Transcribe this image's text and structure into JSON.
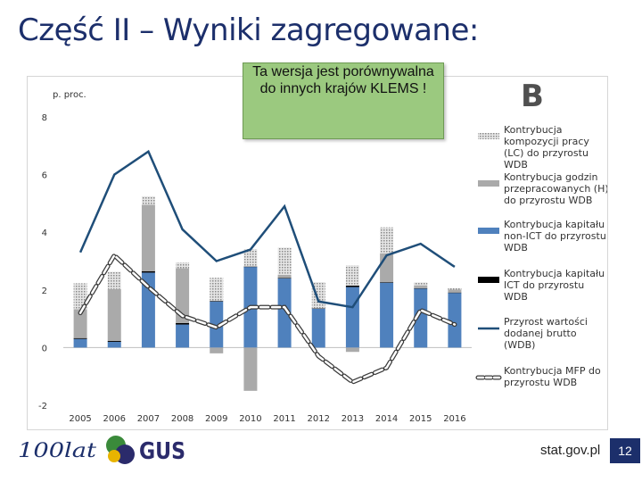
{
  "slide": {
    "title": "Część II – Wyniki zagregowane:",
    "note": "Ta wersja jest porównywalna do innych krajów KLEMS !",
    "panel_letter": "B",
    "footer_url": "stat.gov.pl",
    "page_number": "12",
    "logo_text_100lat": "100lat",
    "logo_text_gus": "GUS"
  },
  "colors": {
    "title": "#1c2f6b",
    "lc": "#c8c8c8",
    "hours": "#aaaaaa",
    "capital_non_ict": "#4f81bd",
    "capital_ict": "#000000",
    "gva": "#1f4e79",
    "mfp": "#555555",
    "note_bg": "#9bc97f",
    "page_badge": "#1c2f6b"
  },
  "chart_data": {
    "type": "bar",
    "ylabel": "p. proc.",
    "ylim": [
      -2,
      8
    ],
    "yticks": [
      "-2",
      "0",
      "2",
      "4",
      "6",
      "8"
    ],
    "categories": [
      "2005",
      "2006",
      "2007",
      "2008",
      "2009",
      "2010",
      "2011",
      "2012",
      "2013",
      "2014",
      "2015",
      "2016"
    ],
    "series": [
      {
        "name": "Kontrybucja kompozycji pracy (LC) do przyrostu WDB",
        "kind": "bar",
        "values": [
          0.9,
          0.6,
          0.3,
          0.2,
          0.8,
          0.6,
          0.95,
          0.9,
          0.7,
          0.9,
          0.1,
          0.05
        ]
      },
      {
        "name": "Kontrybucja godzin przepracowanych (H) do przyrostu WDB",
        "kind": "bar",
        "values": [
          1.0,
          1.8,
          2.3,
          1.9,
          -0.2,
          -1.5,
          0.1,
          0.0,
          -0.15,
          1.0,
          0.1,
          0.1
        ]
      },
      {
        "name": "Kontrybucja kapitału non-ICT do przyrostu WDB",
        "kind": "bar",
        "values": [
          0.3,
          0.2,
          2.6,
          0.8,
          1.6,
          2.8,
          2.4,
          1.35,
          2.1,
          2.25,
          2.05,
          1.9
        ]
      },
      {
        "name": "Kontrybucja kapitału ICT do przyrostu WDB",
        "kind": "bar",
        "values": [
          0.03,
          0.03,
          0.05,
          0.05,
          0.02,
          0.01,
          0.02,
          0.02,
          0.05,
          0.02,
          0.01,
          0.01
        ]
      },
      {
        "name": "Przyrost wartości dodanej brutto (WDB)",
        "kind": "line",
        "values": [
          3.3,
          6.0,
          6.8,
          4.1,
          3.0,
          3.4,
          4.9,
          1.6,
          1.4,
          3.2,
          3.6,
          2.8
        ]
      },
      {
        "name": "Kontrybucja MFP do przyrostu WDB",
        "kind": "dashed-line",
        "values": [
          1.2,
          3.2,
          2.1,
          1.1,
          0.7,
          1.4,
          1.4,
          -0.3,
          -1.2,
          -0.7,
          1.3,
          0.8
        ]
      }
    ],
    "legend_lines": [
      [
        "Kontrybucja",
        "kompozycji pracy",
        "(LC) do przyrostu",
        "WDB"
      ],
      [
        "Kontrybucja godzin",
        "przepracowanych (H)",
        "do przyrostu WDB"
      ],
      [
        "Kontrybucja kapitału",
        "non-ICT do przyrostu",
        "WDB"
      ],
      [
        "Kontrybucja kapitału",
        "ICT do przyrostu",
        "WDB"
      ],
      [
        "Przyrost wartości",
        "dodanej brutto",
        "(WDB)"
      ],
      [
        "Kontrybucja MFP do",
        "przyrostu WDB"
      ]
    ],
    "grid": false,
    "legend_position": "right"
  }
}
